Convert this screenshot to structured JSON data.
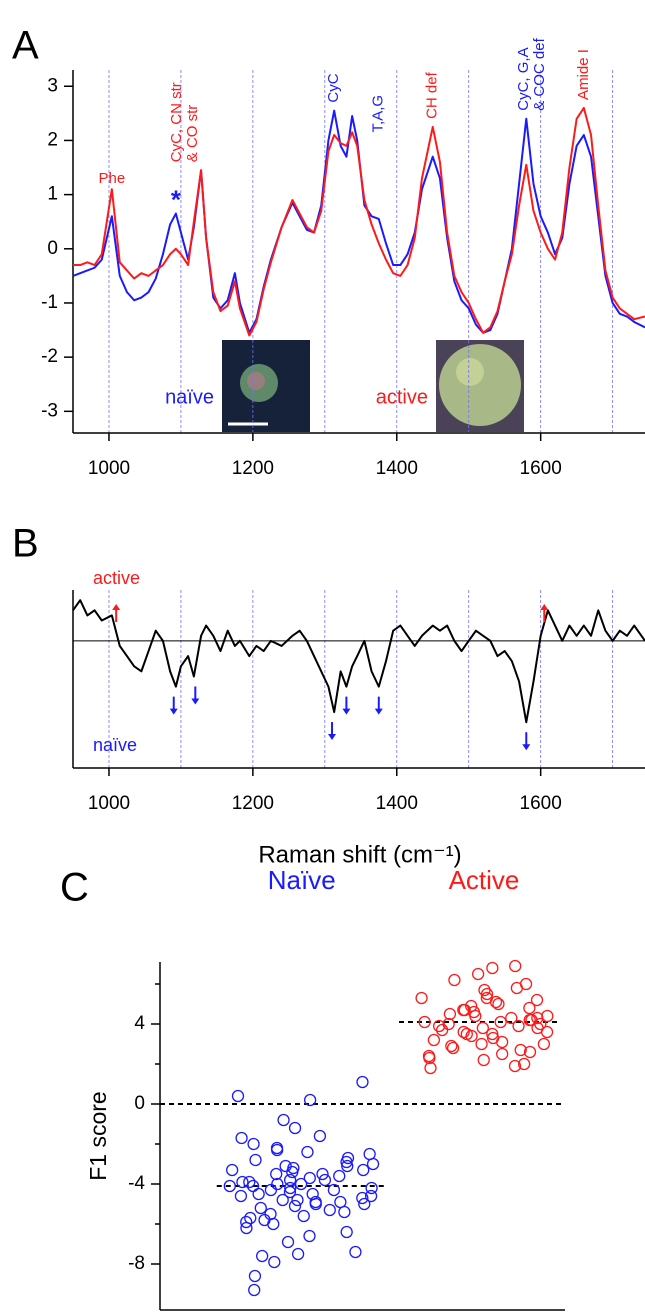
{
  "chart_data": [
    {
      "type": "line",
      "panel": "A",
      "x": [
        950,
        960,
        970,
        980,
        990,
        1004,
        1015,
        1025,
        1035,
        1045,
        1055,
        1065,
        1075,
        1085,
        1093,
        1100,
        1110,
        1118,
        1128,
        1135,
        1145,
        1155,
        1165,
        1175,
        1182,
        1195,
        1205,
        1215,
        1225,
        1240,
        1255,
        1265,
        1275,
        1285,
        1295,
        1305,
        1313,
        1322,
        1330,
        1338,
        1345,
        1355,
        1365,
        1375,
        1385,
        1395,
        1405,
        1415,
        1425,
        1435,
        1450,
        1460,
        1470,
        1480,
        1490,
        1500,
        1510,
        1520,
        1530,
        1540,
        1550,
        1560,
        1570,
        1580,
        1590,
        1600,
        1610,
        1620,
        1630,
        1640,
        1650,
        1660,
        1670,
        1680,
        1690,
        1700,
        1710,
        1720,
        1730,
        1745
      ],
      "series": [
        {
          "color": "#1a1aff",
          "values": [
            -0.5,
            -0.45,
            -0.4,
            -0.35,
            -0.2,
            0.6,
            -0.5,
            -0.8,
            -0.95,
            -0.9,
            -0.8,
            -0.55,
            -0.1,
            0.45,
            0.65,
            0.3,
            -0.2,
            0.4,
            1.45,
            0.2,
            -0.9,
            -1.1,
            -0.95,
            -0.45,
            -1.0,
            -1.55,
            -1.3,
            -0.7,
            -0.2,
            0.4,
            0.85,
            0.6,
            0.35,
            0.3,
            0.8,
            2.0,
            2.55,
            1.9,
            1.7,
            2.45,
            2.0,
            0.8,
            0.6,
            0.55,
            0.1,
            -0.3,
            -0.3,
            -0.1,
            0.3,
            1.1,
            1.7,
            1.3,
            0.2,
            -0.6,
            -0.95,
            -1.1,
            -1.4,
            -1.55,
            -1.5,
            -1.2,
            -0.6,
            0.0,
            1.2,
            2.4,
            1.2,
            0.6,
            0.3,
            -0.1,
            0.2,
            1.2,
            1.9,
            2.1,
            1.7,
            0.6,
            -0.5,
            -1.0,
            -1.2,
            -1.25,
            -1.35,
            -1.45
          ]
        },
        {
          "color": "#ff1a1a",
          "values": [
            -0.3,
            -0.3,
            -0.25,
            -0.3,
            -0.1,
            1.1,
            -0.25,
            -0.4,
            -0.55,
            -0.45,
            -0.5,
            -0.4,
            -0.3,
            -0.1,
            0.0,
            -0.1,
            -0.3,
            0.5,
            1.45,
            0.2,
            -0.8,
            -1.15,
            -1.05,
            -0.6,
            -1.1,
            -1.6,
            -1.35,
            -0.75,
            -0.25,
            0.4,
            0.9,
            0.65,
            0.4,
            0.3,
            0.7,
            1.8,
            2.1,
            1.95,
            1.9,
            2.15,
            1.9,
            0.9,
            0.45,
            0.1,
            -0.2,
            -0.45,
            -0.5,
            -0.3,
            0.2,
            1.3,
            2.25,
            1.6,
            0.3,
            -0.5,
            -0.8,
            -1.0,
            -1.3,
            -1.55,
            -1.45,
            -1.15,
            -0.6,
            -0.1,
            0.8,
            1.55,
            0.7,
            0.3,
            0.0,
            -0.2,
            0.3,
            1.5,
            2.4,
            2.6,
            2.1,
            0.8,
            -0.4,
            -0.9,
            -1.1,
            -1.2,
            -1.3,
            -1.25
          ]
        }
      ],
      "xlim": [
        950,
        1745
      ],
      "ylim": [
        -3.4,
        3.3
      ],
      "xticks": [
        1000,
        1200,
        1400,
        1600
      ],
      "yticks": [
        -3,
        -2,
        -1,
        0,
        1,
        2,
        3
      ],
      "grid_x": [
        1000,
        1100,
        1200,
        1300,
        1400,
        1500,
        1600,
        1700
      ],
      "grid_color": "#7070ff",
      "annotations": [
        {
          "lines": [
            "Phe"
          ],
          "x": 1004,
          "color": "#ff1a1a",
          "rotated": false
        },
        {
          "lines": [
            "*"
          ],
          "x": 1093,
          "color": "#1a1aff",
          "rotated": false
        },
        {
          "lines": [
            "CyC, CN str",
            "& CO str"
          ],
          "x": 1106,
          "color": "#ff1a1a",
          "rotated": true
        },
        {
          "lines": [
            "CyC"
          ],
          "x": 1313,
          "color": "#1a1aff",
          "rotated": true
        },
        {
          "lines": [
            "T,A,G"
          ],
          "x": 1375,
          "color": "#1a1aff",
          "rotated": true
        },
        {
          "lines": [
            "CH def"
          ],
          "x": 1450,
          "color": "#ff1a1a",
          "rotated": true
        },
        {
          "lines": [
            "CyC, G,A",
            "& COC def"
          ],
          "x": 1588,
          "color": "#1a1aff",
          "rotated": true
        },
        {
          "lines": [
            "Amide I"
          ],
          "x": 1660,
          "color": "#ff1a1a",
          "rotated": true
        }
      ],
      "labels": [
        {
          "text": "naïve",
          "color": "#1a1aff"
        },
        {
          "text": "active",
          "color": "#ff1a1a"
        }
      ]
    },
    {
      "type": "line",
      "panel": "B",
      "x": [
        950,
        960,
        970,
        980,
        990,
        1004,
        1015,
        1025,
        1035,
        1045,
        1055,
        1065,
        1075,
        1085,
        1093,
        1100,
        1110,
        1118,
        1128,
        1135,
        1145,
        1155,
        1165,
        1175,
        1182,
        1195,
        1205,
        1215,
        1225,
        1240,
        1255,
        1265,
        1275,
        1285,
        1295,
        1305,
        1313,
        1322,
        1330,
        1338,
        1345,
        1355,
        1365,
        1375,
        1385,
        1395,
        1405,
        1415,
        1425,
        1435,
        1450,
        1460,
        1470,
        1480,
        1490,
        1500,
        1510,
        1520,
        1530,
        1540,
        1550,
        1560,
        1570,
        1580,
        1590,
        1600,
        1610,
        1620,
        1630,
        1640,
        1650,
        1660,
        1670,
        1680,
        1690,
        1700,
        1710,
        1720,
        1730,
        1745
      ],
      "series": [
        {
          "color": "#000000",
          "values": [
            0.6,
            0.8,
            0.5,
            0.6,
            0.4,
            0.5,
            -0.1,
            -0.3,
            -0.5,
            -0.6,
            -0.2,
            0.2,
            0.0,
            -0.6,
            -0.9,
            -0.5,
            -0.3,
            -0.7,
            0.1,
            0.3,
            0.1,
            -0.2,
            0.2,
            -0.1,
            0.0,
            -0.3,
            -0.1,
            -0.2,
            0.0,
            -0.1,
            0.1,
            0.2,
            0.0,
            -0.3,
            -0.6,
            -0.9,
            -1.4,
            -0.6,
            -0.9,
            -0.5,
            -0.3,
            0.0,
            -0.6,
            -0.9,
            -0.4,
            0.2,
            0.3,
            0.1,
            -0.1,
            0.1,
            0.3,
            0.2,
            0.3,
            0.0,
            -0.2,
            0.0,
            0.2,
            0.1,
            0.0,
            -0.3,
            -0.2,
            -0.4,
            -0.8,
            -1.6,
            -0.8,
            0.1,
            0.6,
            0.3,
            0.0,
            0.3,
            0.1,
            0.3,
            0.1,
            0.6,
            0.2,
            0.0,
            0.2,
            0.1,
            0.3,
            0.0
          ]
        }
      ],
      "xlim": [
        950,
        1745
      ],
      "ylim": [
        -2.5,
        1
      ],
      "xticks": [
        1000,
        1200,
        1400,
        1600
      ],
      "grid_x": [
        1000,
        1100,
        1200,
        1300,
        1400,
        1500,
        1600,
        1700
      ],
      "grid_color": "#7070ff",
      "hline": 0,
      "xlabel": "Raman shift (cm⁻¹)",
      "labels": [
        {
          "text": "active",
          "color": "#ff1a1a"
        },
        {
          "text": "naïve",
          "color": "#1a1aff"
        }
      ],
      "up_arrows": [
        1010,
        1605
      ],
      "down_arrows": [
        1090,
        1120,
        1310,
        1330,
        1375,
        1580
      ]
    },
    {
      "type": "strip",
      "panel": "C",
      "series": [
        {
          "name": "Naïve",
          "color": "#1a1aff",
          "values": [
            1.1,
            0.4,
            0.2,
            -0.8,
            -1.2,
            -1.6,
            -2.0,
            -2.3,
            -2.4,
            -2.5,
            -2.7,
            -2.8,
            -3.0,
            -3.1,
            -3.2,
            -3.3,
            -3.4,
            -3.5,
            -3.5,
            -3.6,
            -3.7,
            -3.8,
            -3.8,
            -3.9,
            -4.0,
            -4.0,
            -4.1,
            -4.1,
            -4.2,
            -4.2,
            -4.3,
            -4.3,
            -4.4,
            -4.5,
            -4.5,
            -4.6,
            -4.7,
            -4.8,
            -4.9,
            -4.9,
            -5.0,
            -5.1,
            -5.2,
            -5.3,
            -5.4,
            -5.5,
            -5.6,
            -5.7,
            -5.9,
            -6.0,
            -6.2,
            -6.4,
            -6.6,
            -6.9,
            -7.4,
            -7.5,
            -7.6,
            -7.9,
            -8.6,
            -9.3,
            -1.7,
            -2.9,
            -3.3,
            -3.9,
            -4.6,
            -5.0,
            -5.8,
            -3.1,
            -2.2,
            -4.8
          ],
          "mean": -4.1
        },
        {
          "name": "Active",
          "color": "#ff1a1a",
          "values": [
            6.9,
            6.8,
            6.5,
            6.2,
            6.0,
            5.8,
            5.7,
            5.5,
            5.3,
            5.3,
            5.1,
            5.0,
            4.9,
            4.8,
            4.7,
            4.6,
            4.5,
            4.4,
            4.3,
            4.2,
            4.2,
            4.1,
            4.1,
            4.0,
            4.0,
            3.9,
            3.9,
            3.8,
            3.7,
            3.6,
            3.5,
            3.5,
            3.4,
            3.3,
            3.2,
            3.1,
            3.0,
            2.9,
            2.8,
            2.7,
            2.6,
            2.5,
            2.3,
            2.2,
            2.0,
            1.9,
            1.8,
            4.4,
            3.6,
            5.2,
            3.0,
            4.7,
            3.8,
            2.4,
            4.3
          ],
          "mean": 4.1
        }
      ],
      "ylim": [
        -10.3,
        7.1
      ],
      "yticks": [
        -8,
        -4,
        0,
        4
      ],
      "yminorticks": [
        -6,
        -2,
        2,
        6
      ],
      "hline": 0,
      "ylabel": "F1 score"
    }
  ]
}
